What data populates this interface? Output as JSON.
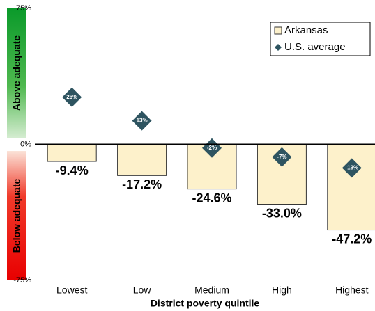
{
  "chart_data": {
    "type": "bar",
    "categories": [
      "Lowest",
      "Low",
      "Medium",
      "High",
      "Highest"
    ],
    "x_label": "District poverty quintile",
    "upper_band_label": "Above adequate",
    "lower_band_label": "Below adequate",
    "series": [
      {
        "name": "Arkansas",
        "type": "bar",
        "color": "#fdf1cb",
        "values": [
          -9.4,
          -17.2,
          -24.6,
          -33.0,
          -47.2
        ],
        "value_labels": [
          "-9.4%",
          "-17.2%",
          "-24.6%",
          "-33.0%",
          "-47.2%"
        ]
      },
      {
        "name": "U.S. average",
        "type": "diamond",
        "color": "#2e5460",
        "values": [
          26,
          13,
          -2,
          -7,
          -13
        ],
        "value_labels": [
          "26%",
          "13%",
          "-2%",
          "-7%",
          "-13%"
        ]
      }
    ],
    "ylim": [
      -75,
      75
    ],
    "yticks": [
      {
        "value": -75,
        "label": "-75%"
      },
      {
        "value": 0,
        "label": "0%"
      },
      {
        "value": 75,
        "label": "75%"
      }
    ],
    "legend": "top-right"
  }
}
